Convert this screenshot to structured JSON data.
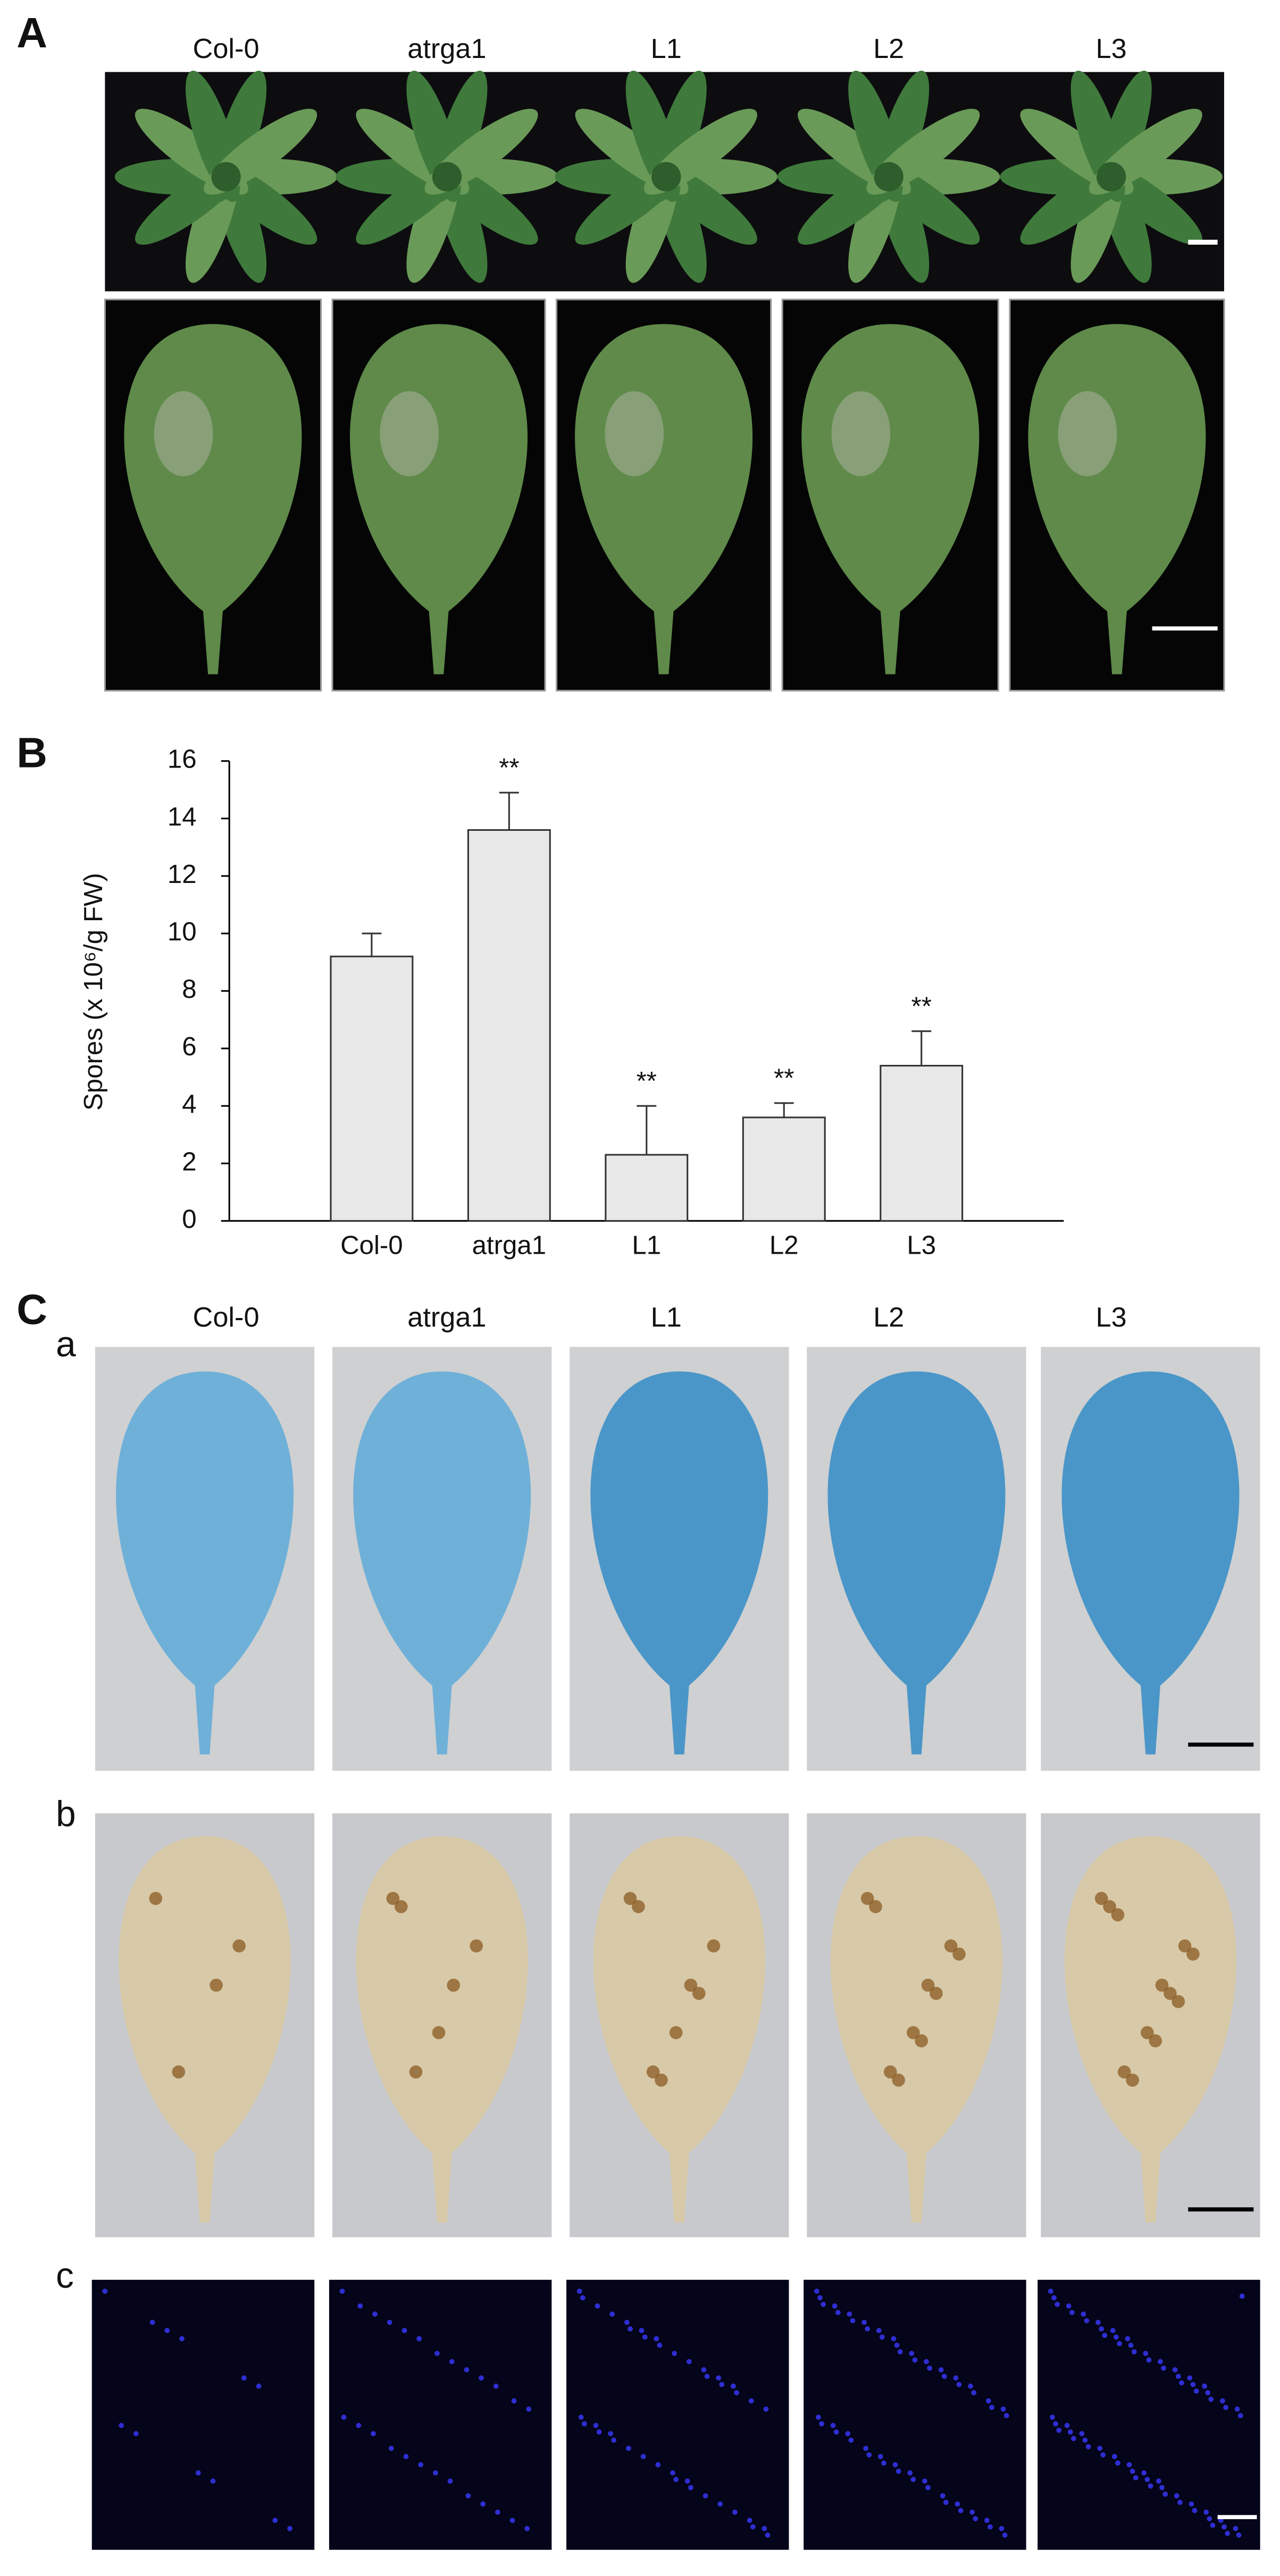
{
  "panels": {
    "A": {
      "label": "A",
      "columns": [
        "Col-0",
        "atrga1",
        "L1",
        "L2",
        "L3"
      ]
    },
    "B": {
      "label": "B"
    },
    "C": {
      "label": "C",
      "columns": [
        "Col-0",
        "atrga1",
        "L1",
        "L2",
        "L3"
      ],
      "rows": [
        {
          "label": "a"
        },
        {
          "label": "b"
        },
        {
          "label": "c"
        }
      ]
    }
  },
  "chart_data": {
    "type": "bar",
    "ylabel": "Spores (x 10⁶/g FW)",
    "categories": [
      "Col-0",
      "atrga1",
      "L1",
      "L2",
      "L3"
    ],
    "values": [
      9.2,
      13.6,
      2.3,
      3.6,
      5.4
    ],
    "errors": [
      0.8,
      1.3,
      1.7,
      0.5,
      1.2
    ],
    "annotations": [
      null,
      "**",
      "**",
      "**",
      "**"
    ],
    "color": "#e8e8e8",
    "ylim": [
      0,
      16
    ],
    "yticks": [
      0,
      2,
      4,
      6,
      8,
      10,
      12,
      14,
      16
    ]
  }
}
